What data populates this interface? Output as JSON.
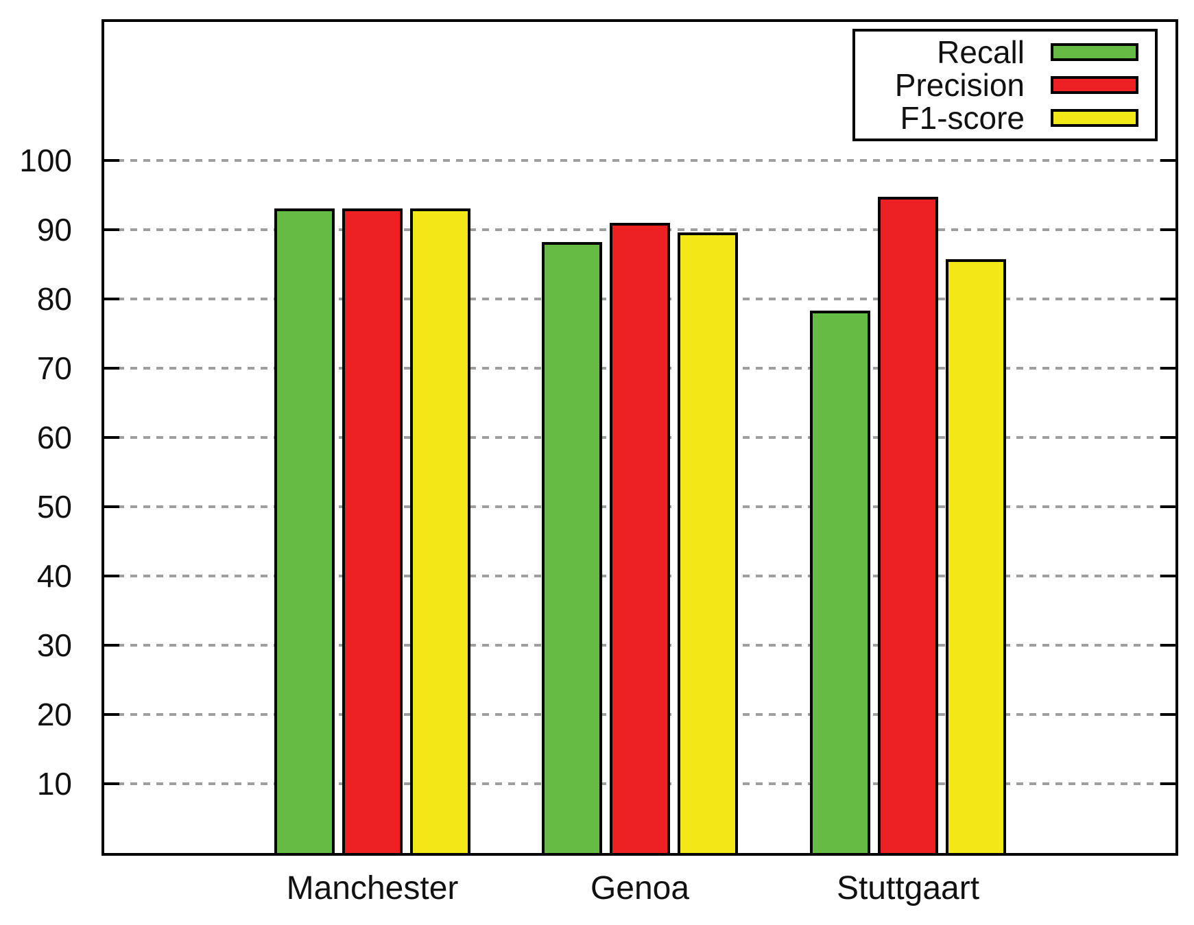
{
  "page": {
    "background": "#ffffff",
    "grid_color": "#9e9e9e",
    "axis_color": "#000000"
  },
  "chart_data": {
    "type": "bar",
    "title": "",
    "xlabel": "",
    "ylabel": "",
    "categories": [
      "Manchester",
      "Genoa",
      "Stuttgaart"
    ],
    "series": [
      {
        "name": "Recall",
        "color": "#66BB44",
        "values": [
          93.1,
          88.2,
          78.3
        ]
      },
      {
        "name": "Precision",
        "color": "#ED2024",
        "values": [
          93.1,
          91.0,
          94.8
        ]
      },
      {
        "name": "F1-score",
        "color": "#F2E817",
        "values": [
          93.1,
          89.6,
          85.7
        ]
      }
    ],
    "ylim": [
      0,
      120
    ],
    "yticks": [
      10,
      20,
      30,
      40,
      50,
      60,
      70,
      80,
      90,
      100
    ],
    "grid": "horizontal-dashed",
    "legend_position": "top-right"
  }
}
